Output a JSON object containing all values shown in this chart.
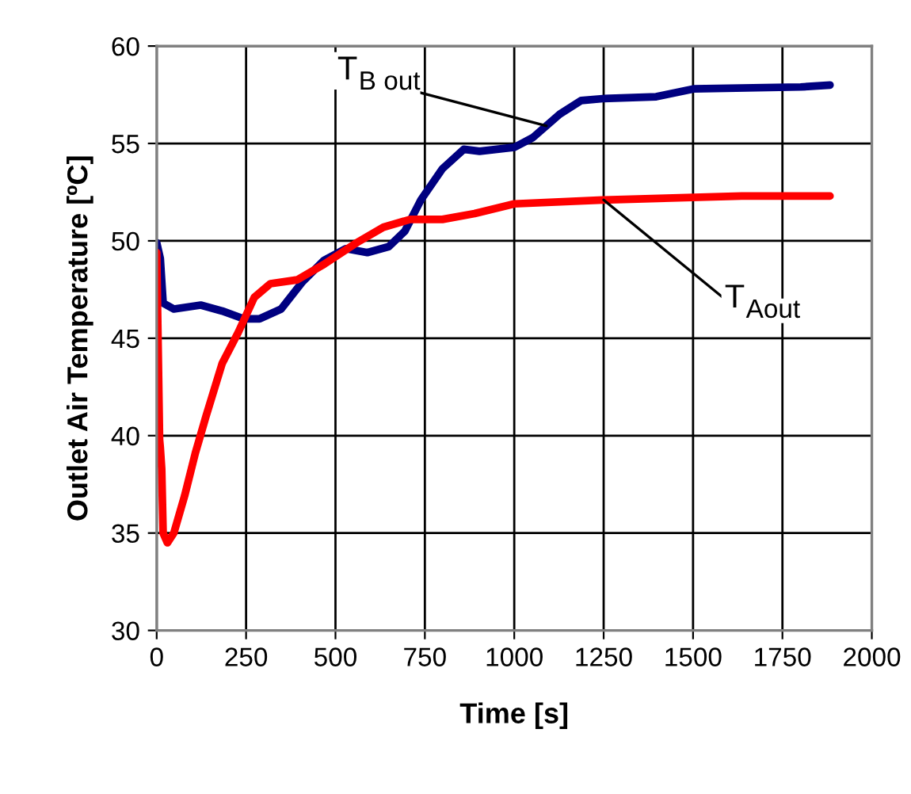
{
  "chart_data": {
    "type": "line",
    "xlabel": "Time [s]",
    "ylabel": "Outlet Air Temperature [ºC]",
    "xlim": [
      0,
      2000
    ],
    "xticks": [
      0,
      250,
      500,
      750,
      1000,
      1250,
      1500,
      1750,
      2000
    ],
    "ylim": [
      30,
      60
    ],
    "yticks": [
      30,
      35,
      40,
      45,
      50,
      55,
      60
    ],
    "grid": true,
    "marker": "none",
    "line_style": "solid",
    "series": [
      {
        "color": "#000080",
        "x": [
          0,
          10,
          18,
          48,
          123,
          183,
          243,
          288,
          348,
          408,
          468,
          529,
          589,
          649,
          694,
          739,
          799,
          859,
          903,
          1000,
          1052,
          1127,
          1187,
          1247,
          1397,
          1501,
          1801,
          1883
        ],
        "values": [
          49.9,
          49.1,
          46.8,
          46.5,
          46.7,
          46.4,
          46.0,
          46.0,
          46.5,
          47.9,
          49.0,
          49.6,
          49.4,
          49.7,
          50.5,
          52.1,
          53.7,
          54.7,
          54.6,
          54.8,
          55.3,
          56.5,
          57.2,
          57.3,
          57.4,
          57.8,
          57.9,
          58.0
        ]
      },
      {
        "color": "#ff0000",
        "x": [
          0,
          8,
          10,
          14,
          18,
          30,
          48,
          78,
          108,
          138,
          183,
          228,
          273,
          318,
          393,
          468,
          559,
          634,
          709,
          799,
          889,
          1000,
          1247,
          1636,
          1883
        ],
        "values": [
          49.4,
          39.8,
          39.4,
          38.3,
          35.0,
          34.5,
          35.0,
          36.9,
          39.1,
          41.0,
          43.7,
          45.3,
          47.1,
          47.8,
          48.0,
          48.8,
          49.9,
          50.7,
          51.1,
          51.1,
          51.4,
          51.9,
          52.1,
          52.3,
          52.3
        ]
      }
    ],
    "annotations": [
      {
        "text": "T$_{B out}$",
        "x": 1090,
        "y": 55.9
      },
      {
        "text": "T$_{Aout}$",
        "x": 1250,
        "y": 52.1
      }
    ]
  }
}
